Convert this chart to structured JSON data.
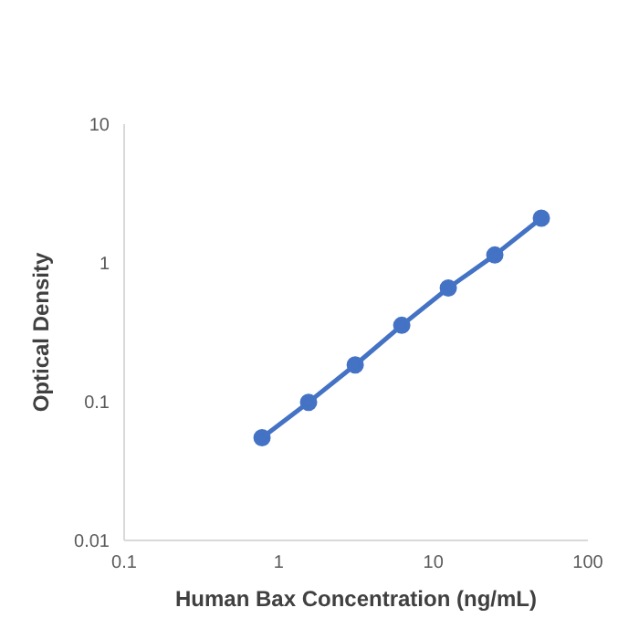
{
  "chart_data": {
    "type": "line",
    "xlabel": "Human Bax Concentration (ng/mL)",
    "ylabel": "Optical Density",
    "log": "xy",
    "x": [
      0.78,
      1.56,
      3.125,
      6.25,
      12.5,
      25,
      50
    ],
    "series": [
      {
        "color": "#4472c4",
        "values": [
          0.055,
          0.099,
          0.184,
          0.355,
          0.66,
          1.14,
          2.1
        ]
      }
    ],
    "xlim": [
      0.1,
      100
    ],
    "xticks": [
      0.1,
      1,
      10,
      100
    ],
    "ylim": [
      0.01,
      10
    ],
    "yticks": [
      0.01,
      0.1,
      1,
      10
    ],
    "marker": "circle",
    "line_style": "solid",
    "grid": false,
    "legend": false
  }
}
